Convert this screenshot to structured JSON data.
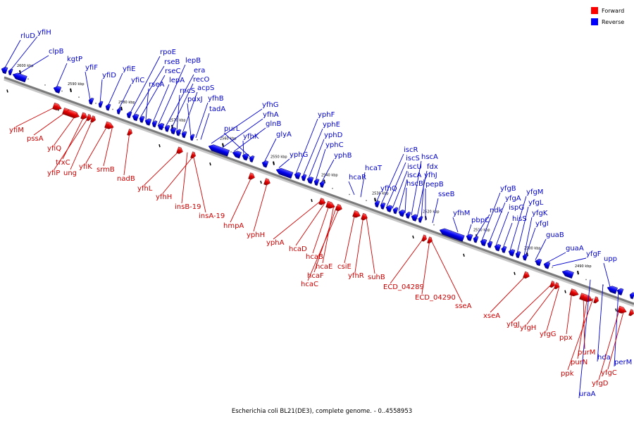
{
  "colors": {
    "forward": "#e60000",
    "reverse": "#0000ee",
    "backbone": "#8a8a8a"
  },
  "legend": [
    {
      "label": "Forward",
      "color": "#ff0000"
    },
    {
      "label": "Reverse",
      "color": "#0000ff"
    }
  ],
  "caption": "Escherichia coli BL21(DE3), complete genome. - 0..4558953",
  "ticks": [
    "2600 kbp",
    "2590 kbp",
    "2580 kbp",
    "2570 kbp",
    "2560 kbp",
    "2550 kbp",
    "2540 kbp",
    "2530 kbp",
    "2520 kbp",
    "2510 kbp",
    "2500 kbp",
    "2490 kbp"
  ],
  "reverse_labels": [
    "rluD",
    "yfiH",
    "clpB",
    "kgtP",
    "yfiF",
    "yfiD",
    "yfiE",
    "yfiC",
    "rpoE",
    "rseB",
    "rseC",
    "rseA",
    "lepA",
    "lepB",
    "era",
    "recO",
    "rncS",
    "acpS",
    "pdxJ",
    "yfhB",
    "tadA",
    "yfhG",
    "yfhA",
    "glnB",
    "yfhK",
    "purL",
    "glyA",
    "yphG",
    "yphF",
    "yphE",
    "yphD",
    "yphC",
    "yphB",
    "hcaR",
    "hcaT",
    "yfhQ",
    "iscR",
    "iscS",
    "iscU",
    "iscA",
    "hscB",
    "hscA",
    "fdx",
    "yfhJ",
    "pepB",
    "sseB",
    "yfhM",
    "pbpC",
    "ndk",
    "yfgB",
    "yfgA",
    "ispG",
    "hisS",
    "yfgM",
    "yfgL",
    "yfgK",
    "yfgI",
    "guaB",
    "guaA",
    "yfgF",
    "upp",
    "hda",
    "uraA",
    "perM"
  ],
  "forward_labels": [
    "yfiM",
    "pssA",
    "yfiQ",
    "trxC",
    "yfiP",
    "ung",
    "yfiK",
    "srmB",
    "nadB",
    "yfhL",
    "yfhH",
    "insB-19",
    "insA-19",
    "hmpA",
    "yphH",
    "yphA",
    "hcaD",
    "hcaB",
    "hcaE",
    "hcaF",
    "hcaC",
    "csiE",
    "yfhR",
    "suhB",
    "ECD_04289",
    "ECD_04290",
    "sseA",
    "xseA",
    "yfgJ",
    "yfgH",
    "yfgG",
    "ppx",
    "purM",
    "purN",
    "ppk",
    "yfgD",
    "yfgC"
  ]
}
